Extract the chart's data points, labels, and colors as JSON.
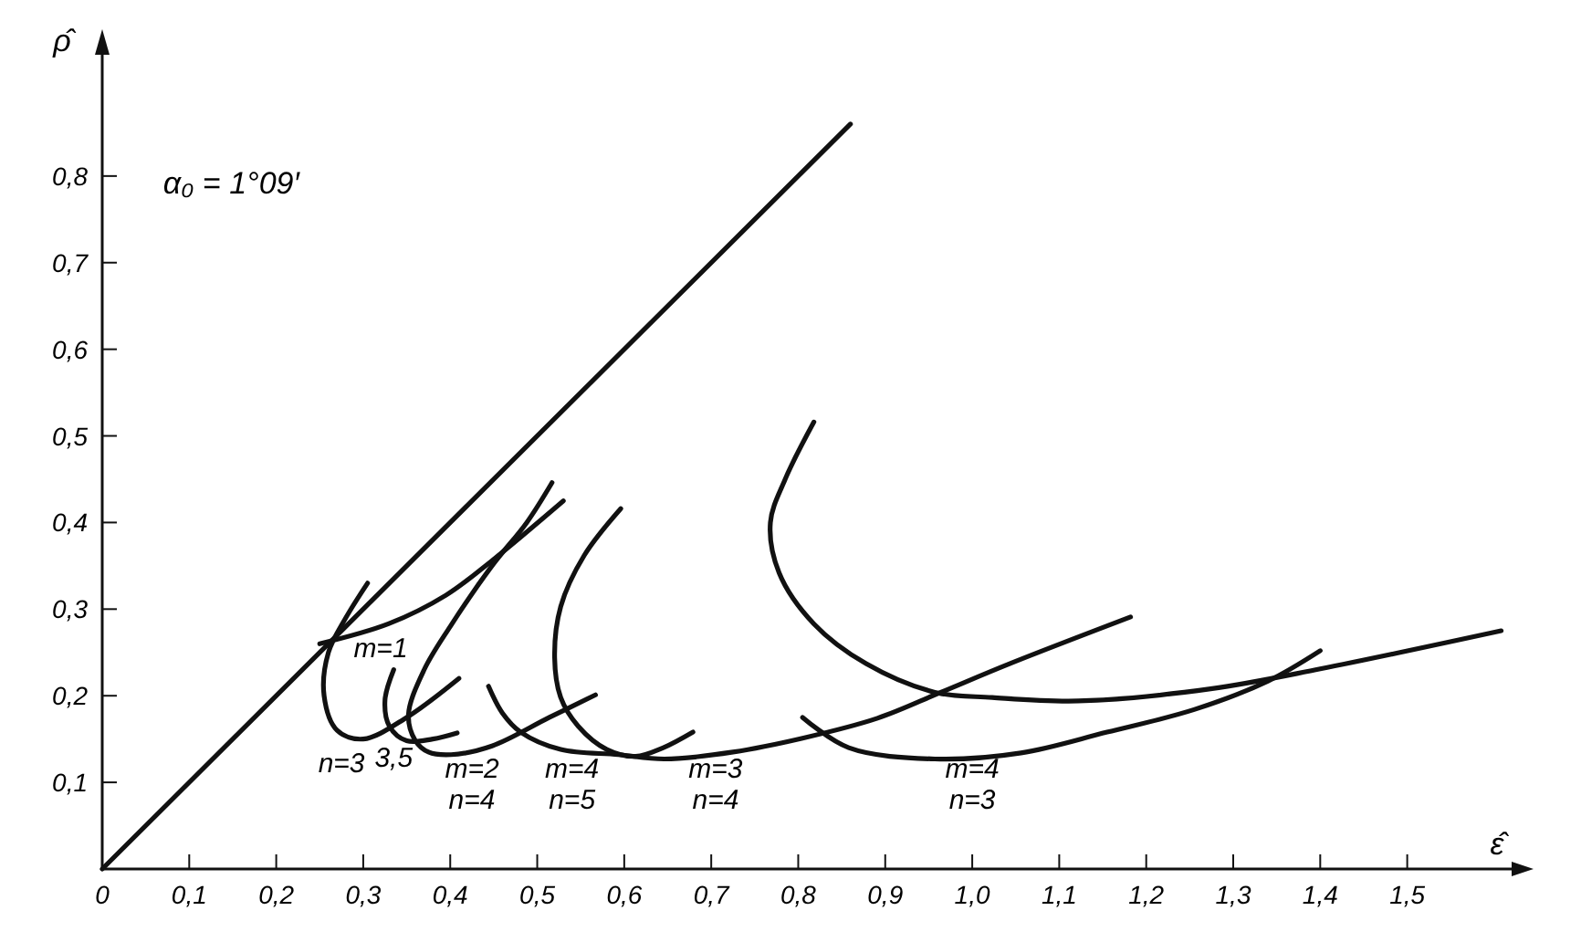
{
  "chart_data": {
    "type": "line",
    "xlabel": "ε̂",
    "ylabel": "ρ̂",
    "xlim": [
      0,
      1.62
    ],
    "ylim": [
      0,
      0.94
    ],
    "xticks": [
      {
        "value": 0,
        "label": "0"
      },
      {
        "value": 0.1,
        "label": "0,1"
      },
      {
        "value": 0.2,
        "label": "0,2"
      },
      {
        "value": 0.3,
        "label": "0,3"
      },
      {
        "value": 0.4,
        "label": "0,4"
      },
      {
        "value": 0.5,
        "label": "0,5"
      },
      {
        "value": 0.6,
        "label": "0,6"
      },
      {
        "value": 0.7,
        "label": "0,7"
      },
      {
        "value": 0.8,
        "label": "0,8"
      },
      {
        "value": 0.9,
        "label": "0,9"
      },
      {
        "value": 1.0,
        "label": "1,0"
      },
      {
        "value": 1.1,
        "label": "1,1"
      },
      {
        "value": 1.2,
        "label": "1,2"
      },
      {
        "value": 1.3,
        "label": "1,3"
      },
      {
        "value": 1.4,
        "label": "1,4"
      },
      {
        "value": 1.5,
        "label": "1,5"
      }
    ],
    "yticks": [
      {
        "value": 0.1,
        "label": "0,1"
      },
      {
        "value": 0.2,
        "label": "0,2"
      },
      {
        "value": 0.3,
        "label": "0,3"
      },
      {
        "value": 0.4,
        "label": "0,4"
      },
      {
        "value": 0.5,
        "label": "0,5"
      },
      {
        "value": 0.6,
        "label": "0,6"
      },
      {
        "value": 0.7,
        "label": "0,7"
      },
      {
        "value": 0.8,
        "label": "0,8"
      }
    ],
    "grid": false,
    "marker": "none",
    "line_style": "solid",
    "series": [
      {
        "color": "#111111",
        "x": [
          0,
          0.86
        ],
        "values": [
          0,
          0.86
        ]
      },
      {
        "color": "#111111",
        "x": [
          0.305,
          0.28,
          0.26,
          0.255,
          0.27,
          0.3,
          0.35,
          0.41
        ],
        "values": [
          0.33,
          0.29,
          0.25,
          0.2,
          0.16,
          0.15,
          0.175,
          0.22
        ]
      },
      {
        "color": "#111111",
        "x": [
          0.335,
          0.325,
          0.33,
          0.35,
          0.38,
          0.408
        ],
        "values": [
          0.23,
          0.195,
          0.165,
          0.148,
          0.15,
          0.157
        ]
      },
      {
        "color": "#111111",
        "x": [
          0.25,
          0.329,
          0.395,
          0.448,
          0.53
        ],
        "values": [
          0.26,
          0.283,
          0.316,
          0.356,
          0.425
        ]
      },
      {
        "color": "#111111",
        "x": [
          0.517,
          0.488,
          0.448,
          0.4,
          0.37,
          0.352,
          0.36,
          0.375,
          0.401,
          0.448,
          0.514,
          0.567
        ],
        "values": [
          0.446,
          0.4,
          0.35,
          0.28,
          0.23,
          0.178,
          0.148,
          0.135,
          0.132,
          0.142,
          0.175,
          0.201
        ]
      },
      {
        "color": "#111111",
        "x": [
          0.596,
          0.554,
          0.527,
          0.52,
          0.527,
          0.547,
          0.58,
          0.613,
          0.645,
          0.679
        ],
        "values": [
          0.416,
          0.362,
          0.303,
          0.244,
          0.198,
          0.165,
          0.138,
          0.13,
          0.14,
          0.158
        ]
      },
      {
        "color": "#111111",
        "x": [
          0.444,
          0.46,
          0.481,
          0.527,
          0.593,
          0.646,
          0.725,
          0.805,
          0.891,
          0.964,
          1.043,
          1.182
        ],
        "values": [
          0.211,
          0.18,
          0.158,
          0.138,
          0.132,
          0.127,
          0.135,
          0.151,
          0.174,
          0.204,
          0.237,
          0.291
        ]
      },
      {
        "color": "#111111",
        "x": [
          0.805,
          0.858,
          0.957,
          1.056,
          1.155,
          1.255,
          1.34,
          1.4
        ],
        "values": [
          0.175,
          0.14,
          0.127,
          0.134,
          0.158,
          0.184,
          0.217,
          0.252
        ]
      },
      {
        "color": "#111111",
        "x": [
          0.818,
          0.785,
          0.768,
          0.778,
          0.818,
          0.878,
          0.957,
          1.023,
          1.122,
          1.274,
          1.4,
          1.608
        ],
        "values": [
          0.516,
          0.45,
          0.4,
          0.342,
          0.283,
          0.237,
          0.204,
          0.198,
          0.194,
          0.208,
          0.231,
          0.275
        ]
      }
    ],
    "annotations": [
      "α₀ = 1°09′",
      "m=1",
      "n=3",
      "3,5",
      "m=2\nn=4",
      "m=4\nn=5",
      "m=3\nn=4",
      "m=4\nn=3"
    ]
  }
}
